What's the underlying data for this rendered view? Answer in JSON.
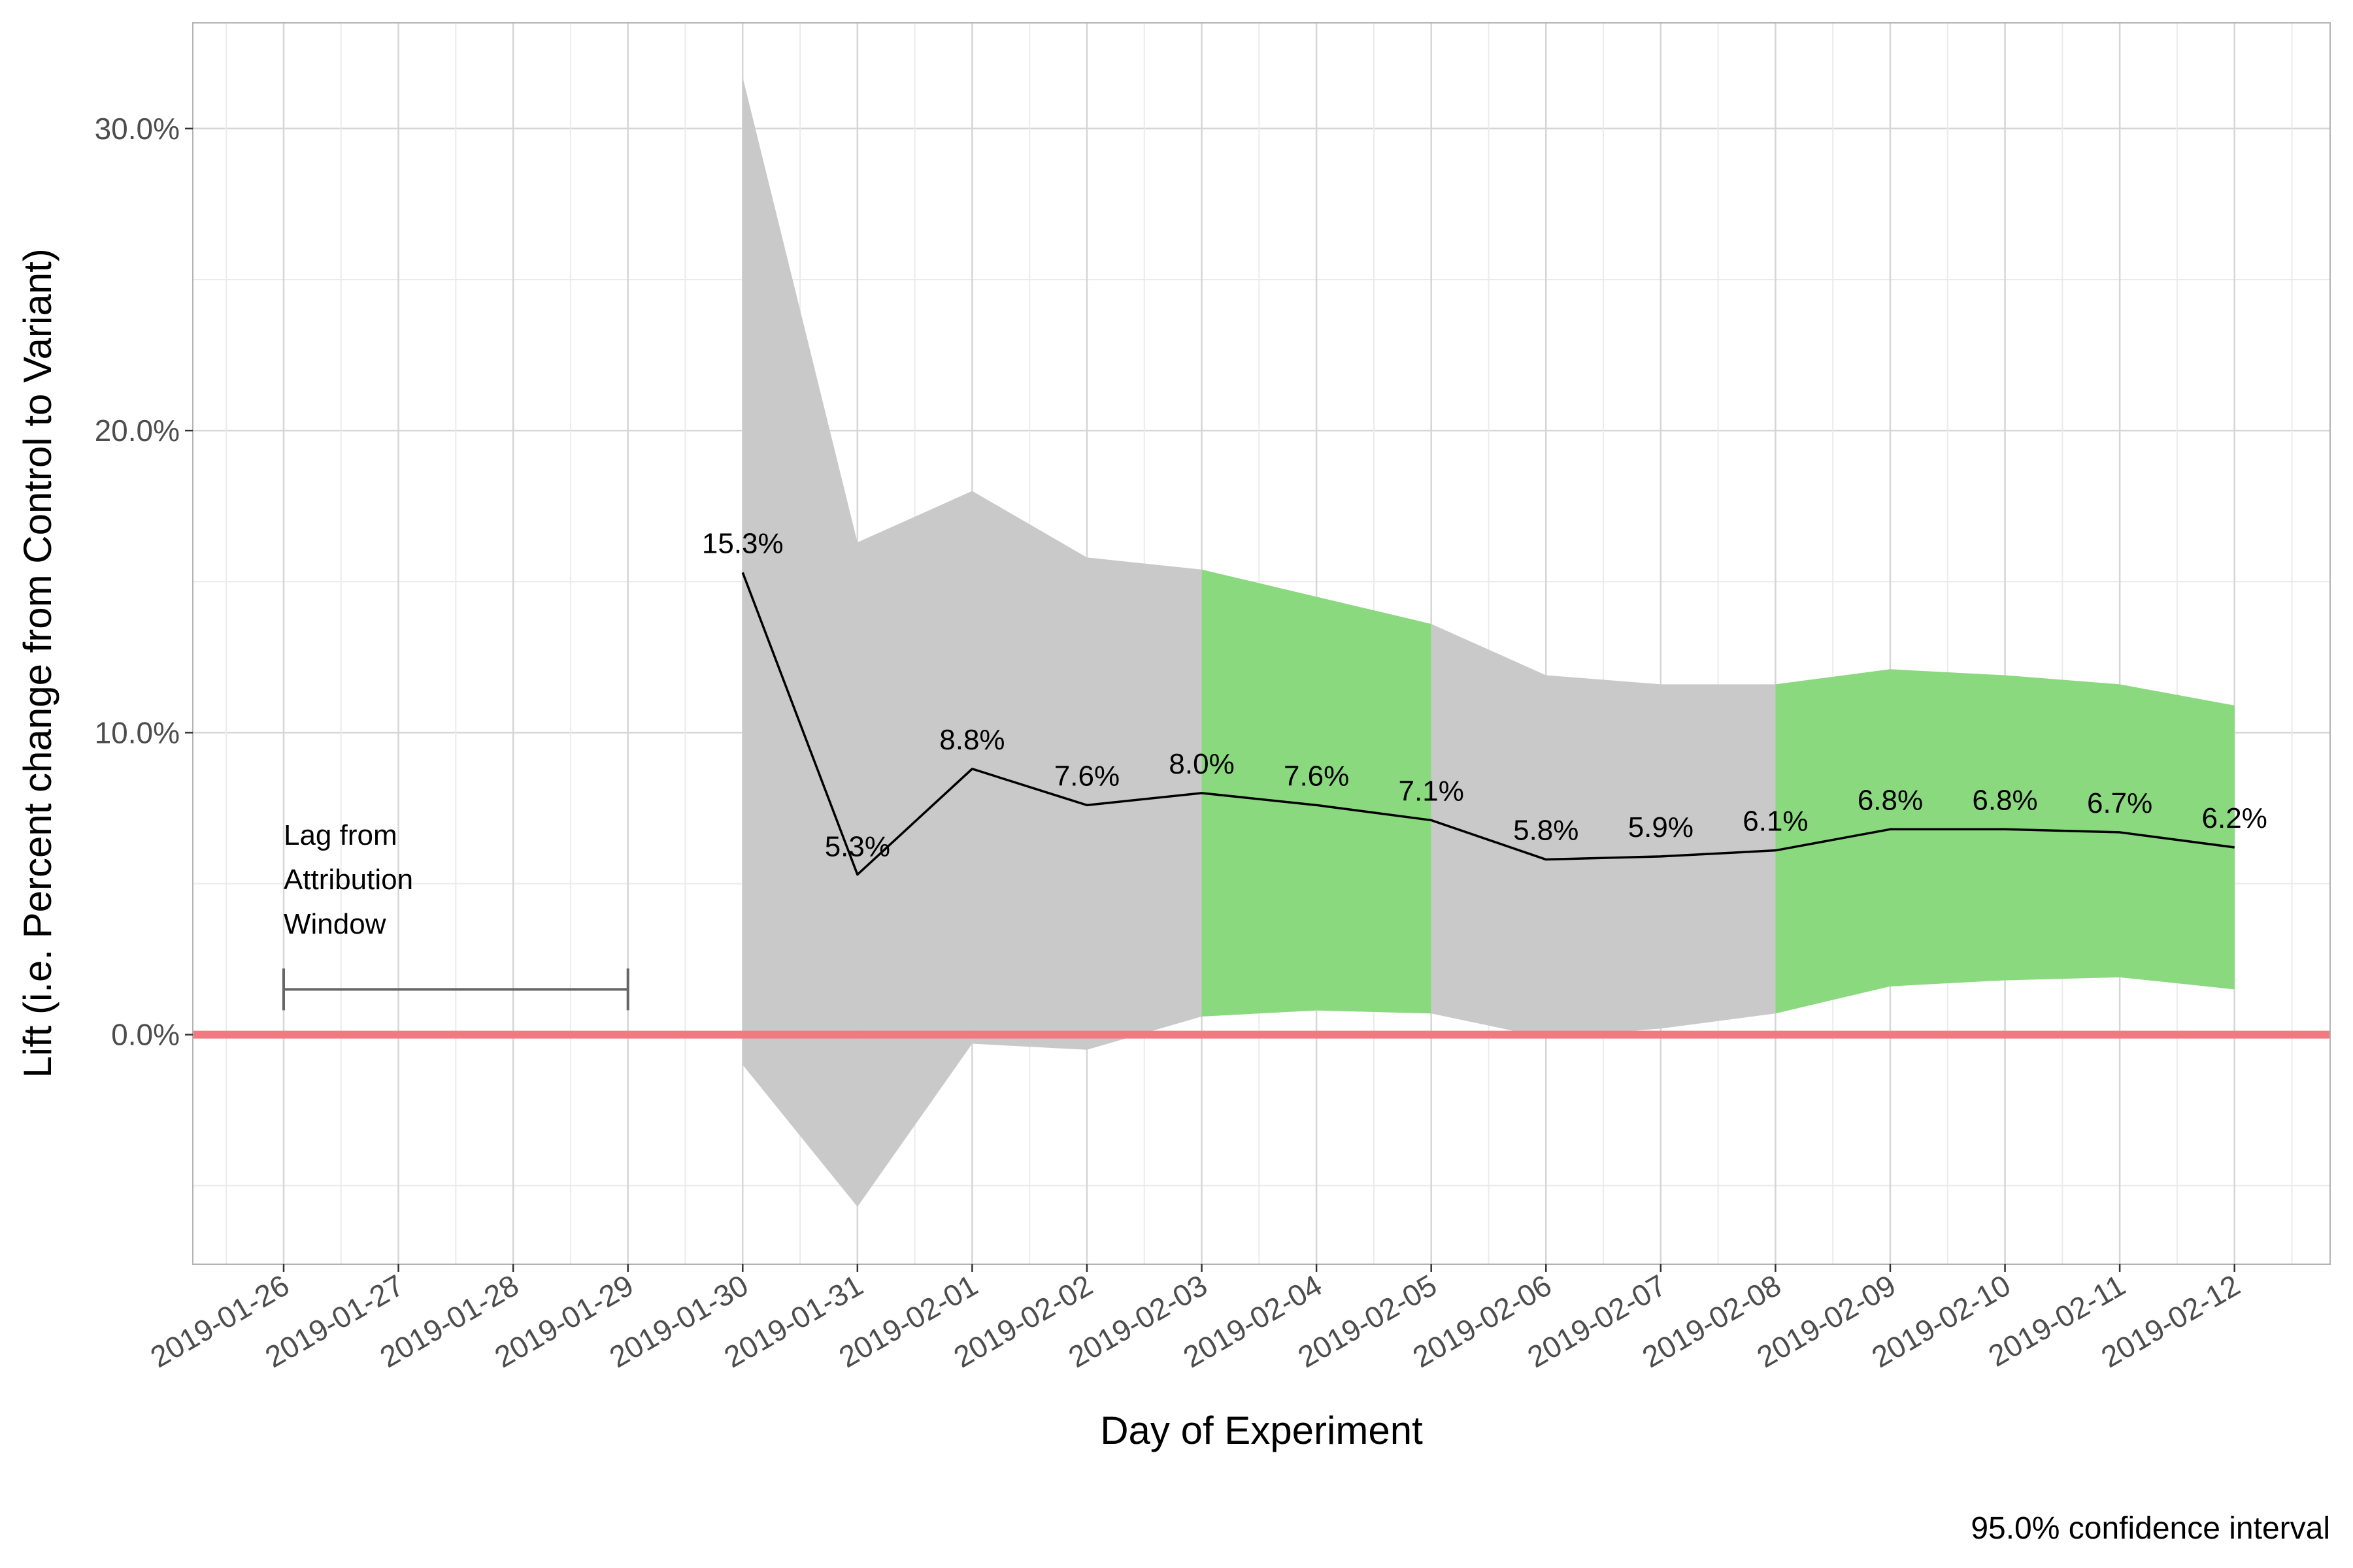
{
  "chart_data": {
    "type": "line",
    "xlabel": "Day of Experiment",
    "ylabel": "Lift (i.e. Percent change from Control to Variant)",
    "caption": "95.0% confidence interval",
    "ylim": [
      -0.076,
      0.335
    ],
    "yticks": [
      0.0,
      0.1,
      0.2,
      0.3
    ],
    "ytick_labels": [
      "0.0%",
      "10.0%",
      "20.0%",
      "30.0%"
    ],
    "x_dates": [
      "2019-01-26",
      "2019-01-27",
      "2019-01-28",
      "2019-01-29",
      "2019-01-30",
      "2019-01-31",
      "2019-02-01",
      "2019-02-02",
      "2019-02-03",
      "2019-02-04",
      "2019-02-05",
      "2019-02-06",
      "2019-02-07",
      "2019-02-08",
      "2019-02-09",
      "2019-02-10",
      "2019-02-11",
      "2019-02-12"
    ],
    "xlim": [
      "2019-01-25 05:00",
      "2019-02-12 20:00"
    ],
    "series": [
      {
        "x": [
          "2019-01-30",
          "2019-01-31",
          "2019-02-01",
          "2019-02-02",
          "2019-02-03",
          "2019-02-04",
          "2019-02-05",
          "2019-02-06",
          "2019-02-07",
          "2019-02-08",
          "2019-02-09",
          "2019-02-10",
          "2019-02-11",
          "2019-02-12"
        ],
        "y": [
          0.153,
          0.053,
          0.088,
          0.076,
          0.08,
          0.076,
          0.071,
          0.058,
          0.059,
          0.061,
          0.068,
          0.068,
          0.067,
          0.062
        ],
        "labels": [
          "15.3%",
          "5.3%",
          "8.8%",
          "7.6%",
          "8.0%",
          "7.6%",
          "7.1%",
          "5.8%",
          "5.9%",
          "6.1%",
          "6.8%",
          "6.8%",
          "6.7%",
          "6.2%"
        ],
        "ci_lower": [
          -0.01,
          -0.057,
          -0.003,
          -0.005,
          0.006,
          0.008,
          0.007,
          -0.001,
          0.002,
          0.007,
          0.016,
          0.018,
          0.019,
          0.015
        ],
        "ci_upper": [
          0.317,
          0.163,
          0.18,
          0.158,
          0.154,
          0.145,
          0.136,
          0.119,
          0.116,
          0.116,
          0.121,
          0.119,
          0.116,
          0.109
        ],
        "color": "#000000"
      }
    ],
    "ci_colors": {
      "significant": "#8ad97f",
      "not_significant": "#c9c9c9"
    },
    "reference_line": {
      "y": 0.0,
      "color": "#f07a80"
    },
    "annotation": {
      "lines": [
        "Lag from",
        "Attribution",
        "Window"
      ],
      "bracket_from": "2019-01-26",
      "bracket_to": "2019-01-29",
      "bracket_y": 0.015,
      "color": "#666666"
    },
    "grid": true,
    "background": "#ffffff",
    "panel_border": "#b3b3b3"
  }
}
